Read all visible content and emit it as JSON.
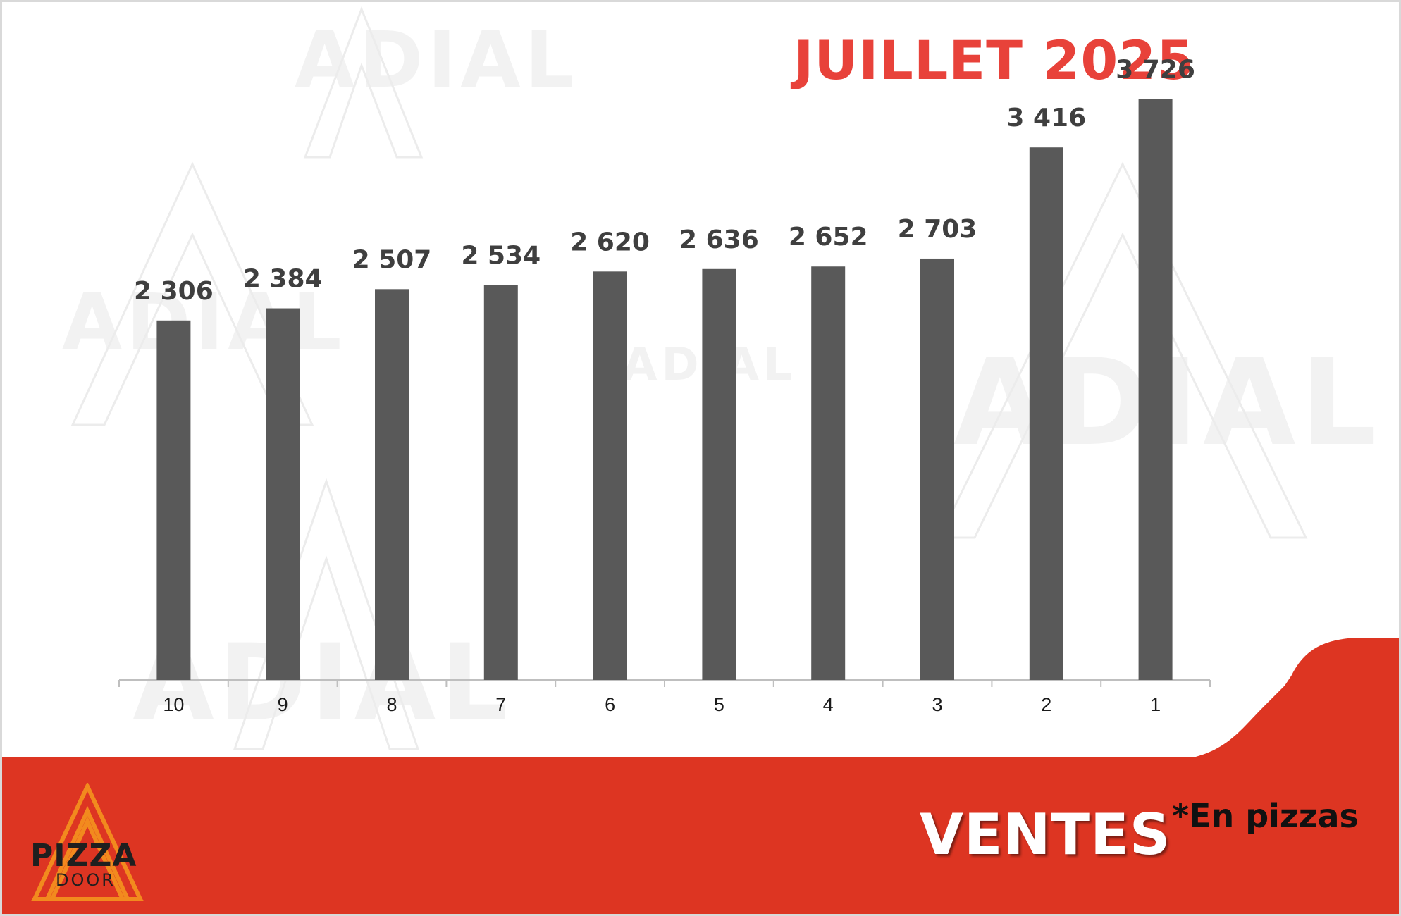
{
  "header": {
    "title": "JUILLET 2025"
  },
  "watermark": {
    "text": "ADIAL"
  },
  "footer": {
    "label": "VENTES",
    "note": "*En pizzas",
    "logo_word": "PIZZA",
    "logo_subword": "DOOR",
    "band_color": "#dd3522"
  },
  "colors": {
    "bar": "#595959",
    "title": "#e8423a",
    "accent": "#dd3522"
  },
  "chart_data": {
    "type": "bar",
    "title": "JUILLET 2025",
    "categories": [
      "10",
      "9",
      "8",
      "7",
      "6",
      "5",
      "4",
      "3",
      "2",
      "1"
    ],
    "values": [
      2306,
      2384,
      2507,
      2534,
      2620,
      2636,
      2652,
      2703,
      3416,
      3726
    ],
    "value_labels": [
      "2 306",
      "2 384",
      "2 507",
      "2 534",
      "2 620",
      "2 636",
      "2 652",
      "2 703",
      "3 416",
      "3 726"
    ],
    "xlabel": "",
    "ylabel": "",
    "ylim": [
      0,
      4000
    ],
    "grid": false,
    "legend": "none"
  }
}
